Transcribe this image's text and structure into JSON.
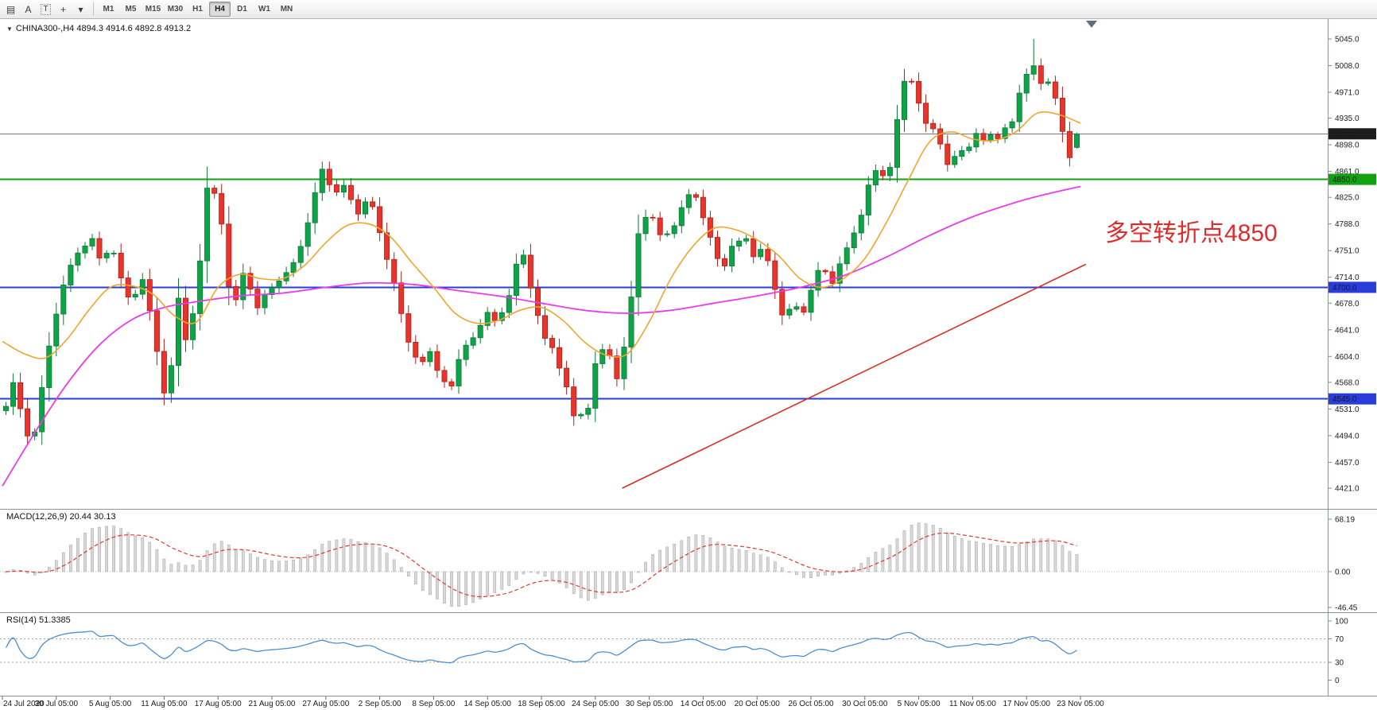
{
  "toolbar": {
    "left_buttons": [
      {
        "name": "windows-tile-icon",
        "glyph": "▤"
      },
      {
        "name": "text-label-icon",
        "glyph": "A"
      },
      {
        "name": "text-box-icon",
        "glyph": "T",
        "boxed": true
      },
      {
        "name": "crosshair-icon",
        "glyph": "+"
      },
      {
        "name": "caret-down-icon",
        "glyph": "▾"
      }
    ],
    "timeframes": [
      {
        "label": "M1"
      },
      {
        "label": "M5"
      },
      {
        "label": "M15"
      },
      {
        "label": "M30"
      },
      {
        "label": "H1"
      },
      {
        "label": "H4",
        "active": true
      },
      {
        "label": "D1"
      },
      {
        "label": "W1"
      },
      {
        "label": "MN"
      }
    ]
  },
  "chart": {
    "collapse_arrow": "▼",
    "symbol_header": "CHINA300-,H4  4894.3 4914.6 4892.8 4913.2",
    "annotation": {
      "text": "多空转折点4850",
      "color": "#e02b2b"
    }
  },
  "macd": {
    "label": "MACD(12,26,9) 20.44 30.13"
  },
  "rsi": {
    "label": "RSI(14) 51.3385"
  },
  "chart_data": {
    "type": "candlestick",
    "symbol": "CHINA300-",
    "timeframe": "H4",
    "ohlc_current": {
      "open": 4894.3,
      "high": 4914.6,
      "low": 4892.8,
      "close": 4913.2
    },
    "num_candles": 150,
    "price_ticks": [
      "5045.0",
      "5008.0",
      "4971.0",
      "4935.0",
      "4898.0",
      "4861.0",
      "4825.0",
      "4788.0",
      "4751.0",
      "4714.0",
      "4678.0",
      "4641.0",
      "4604.0",
      "4568.0",
      "4531.0",
      "4494.0",
      "4457.0",
      "4421.0"
    ],
    "price_range": [
      4421.0,
      5045.0
    ],
    "levels": [
      {
        "price": 4913.2,
        "label": "4913.2",
        "color": "#7a7a7a",
        "width": 1,
        "badge": "#1c1c1c"
      },
      {
        "price": 4850.0,
        "label": "4850.0",
        "color": "#12a112",
        "width": 2,
        "badge": "#12a112"
      },
      {
        "price": 4700.0,
        "label": "4700.0",
        "color": "#2a3cdc",
        "width": 2,
        "badge": "#2a3cdc"
      },
      {
        "price": 4545.0,
        "label": "4545.0",
        "color": "#2a3cdc",
        "width": 2,
        "badge": "#2a3cdc"
      }
    ],
    "time_labels": [
      "24 Jul 2020",
      "30 Jul 05:00",
      "5 Aug 05:00",
      "11 Aug 05:00",
      "17 Aug 05:00",
      "21 Aug 05:00",
      "27 Aug 05:00",
      "2 Sep 05:00",
      "8 Sep 05:00",
      "14 Sep 05:00",
      "18 Sep 05:00",
      "24 Sep 05:00",
      "30 Sep 05:00",
      "14 Oct 05:00",
      "20 Oct 05:00",
      "26 Oct 05:00",
      "30 Oct 05:00",
      "5 Nov 05:00",
      "11 Nov 05:00",
      "17 Nov 05:00",
      "23 Nov 05:00"
    ],
    "price_path": [
      [
        0.0,
        4538
      ],
      [
        0.007,
        4572
      ],
      [
        0.014,
        4524
      ],
      [
        0.024,
        4472
      ],
      [
        0.032,
        4548
      ],
      [
        0.043,
        4642
      ],
      [
        0.056,
        4716
      ],
      [
        0.068,
        4752
      ],
      [
        0.08,
        4768
      ],
      [
        0.089,
        4734
      ],
      [
        0.098,
        4762
      ],
      [
        0.107,
        4716
      ],
      [
        0.117,
        4674
      ],
      [
        0.126,
        4716
      ],
      [
        0.135,
        4665
      ],
      [
        0.146,
        4560
      ],
      [
        0.151,
        4546
      ],
      [
        0.161,
        4688
      ],
      [
        0.169,
        4618
      ],
      [
        0.179,
        4700
      ],
      [
        0.188,
        4842
      ],
      [
        0.199,
        4818
      ],
      [
        0.211,
        4662
      ],
      [
        0.223,
        4724
      ],
      [
        0.234,
        4666
      ],
      [
        0.246,
        4700
      ],
      [
        0.259,
        4716
      ],
      [
        0.271,
        4740
      ],
      [
        0.283,
        4798
      ],
      [
        0.295,
        4866
      ],
      [
        0.306,
        4830
      ],
      [
        0.317,
        4840
      ],
      [
        0.328,
        4798
      ],
      [
        0.339,
        4830
      ],
      [
        0.351,
        4768
      ],
      [
        0.363,
        4700
      ],
      [
        0.376,
        4625
      ],
      [
        0.386,
        4590
      ],
      [
        0.396,
        4614
      ],
      [
        0.406,
        4568
      ],
      [
        0.416,
        4562
      ],
      [
        0.426,
        4614
      ],
      [
        0.437,
        4628
      ],
      [
        0.448,
        4668
      ],
      [
        0.459,
        4648
      ],
      [
        0.47,
        4686
      ],
      [
        0.481,
        4760
      ],
      [
        0.491,
        4688
      ],
      [
        0.501,
        4634
      ],
      [
        0.511,
        4612
      ],
      [
        0.521,
        4576
      ],
      [
        0.531,
        4518
      ],
      [
        0.543,
        4526
      ],
      [
        0.551,
        4598
      ],
      [
        0.561,
        4618
      ],
      [
        0.571,
        4568
      ],
      [
        0.581,
        4648
      ],
      [
        0.591,
        4778
      ],
      [
        0.601,
        4808
      ],
      [
        0.611,
        4774
      ],
      [
        0.621,
        4780
      ],
      [
        0.631,
        4808
      ],
      [
        0.641,
        4836
      ],
      [
        0.651,
        4800
      ],
      [
        0.66,
        4758
      ],
      [
        0.669,
        4720
      ],
      [
        0.679,
        4758
      ],
      [
        0.689,
        4772
      ],
      [
        0.699,
        4738
      ],
      [
        0.708,
        4758
      ],
      [
        0.717,
        4700
      ],
      [
        0.727,
        4654
      ],
      [
        0.736,
        4678
      ],
      [
        0.744,
        4660
      ],
      [
        0.754,
        4710
      ],
      [
        0.762,
        4736
      ],
      [
        0.771,
        4700
      ],
      [
        0.781,
        4740
      ],
      [
        0.79,
        4768
      ],
      [
        0.799,
        4798
      ],
      [
        0.809,
        4866
      ],
      [
        0.818,
        4850
      ],
      [
        0.827,
        4870
      ],
      [
        0.836,
        4982
      ],
      [
        0.844,
        4992
      ],
      [
        0.851,
        4958
      ],
      [
        0.859,
        4930
      ],
      [
        0.867,
        4918
      ],
      [
        0.874,
        4894
      ],
      [
        0.881,
        4862
      ],
      [
        0.889,
        4898
      ],
      [
        0.897,
        4884
      ],
      [
        0.904,
        4918
      ],
      [
        0.911,
        4904
      ],
      [
        0.919,
        4916
      ],
      [
        0.927,
        4908
      ],
      [
        0.934,
        4928
      ],
      [
        0.941,
        4934
      ],
      [
        0.949,
        4984
      ],
      [
        0.956,
        4999
      ],
      [
        0.962,
        5018
      ],
      [
        0.968,
        4974
      ],
      [
        0.974,
        4988
      ],
      [
        0.981,
        4958
      ],
      [
        0.988,
        4904
      ],
      [
        0.994,
        4878
      ],
      [
        1.0,
        4913.2
      ]
    ],
    "ma_fast": [
      [
        0.0,
        4625
      ],
      [
        0.02,
        4608
      ],
      [
        0.04,
        4602
      ],
      [
        0.06,
        4628
      ],
      [
        0.08,
        4668
      ],
      [
        0.1,
        4700
      ],
      [
        0.12,
        4702
      ],
      [
        0.14,
        4690
      ],
      [
        0.16,
        4660
      ],
      [
        0.18,
        4652
      ],
      [
        0.2,
        4700
      ],
      [
        0.22,
        4718
      ],
      [
        0.24,
        4712
      ],
      [
        0.26,
        4712
      ],
      [
        0.28,
        4730
      ],
      [
        0.3,
        4762
      ],
      [
        0.32,
        4786
      ],
      [
        0.34,
        4788
      ],
      [
        0.36,
        4770
      ],
      [
        0.38,
        4734
      ],
      [
        0.4,
        4700
      ],
      [
        0.42,
        4664
      ],
      [
        0.44,
        4650
      ],
      [
        0.46,
        4654
      ],
      [
        0.48,
        4668
      ],
      [
        0.5,
        4672
      ],
      [
        0.52,
        4654
      ],
      [
        0.54,
        4624
      ],
      [
        0.56,
        4606
      ],
      [
        0.58,
        4608
      ],
      [
        0.6,
        4652
      ],
      [
        0.62,
        4712
      ],
      [
        0.64,
        4756
      ],
      [
        0.66,
        4782
      ],
      [
        0.68,
        4780
      ],
      [
        0.7,
        4766
      ],
      [
        0.72,
        4744
      ],
      [
        0.74,
        4712
      ],
      [
        0.76,
        4700
      ],
      [
        0.78,
        4712
      ],
      [
        0.8,
        4740
      ],
      [
        0.82,
        4790
      ],
      [
        0.84,
        4848
      ],
      [
        0.86,
        4902
      ],
      [
        0.88,
        4916
      ],
      [
        0.9,
        4906
      ],
      [
        0.92,
        4904
      ],
      [
        0.94,
        4916
      ],
      [
        0.96,
        4942
      ],
      [
        0.98,
        4940
      ],
      [
        1.0,
        4928
      ]
    ],
    "ma_slow": [
      [
        0.0,
        4424
      ],
      [
        0.03,
        4498
      ],
      [
        0.06,
        4566
      ],
      [
        0.09,
        4620
      ],
      [
        0.12,
        4655
      ],
      [
        0.15,
        4672
      ],
      [
        0.18,
        4680
      ],
      [
        0.22,
        4688
      ],
      [
        0.26,
        4692
      ],
      [
        0.3,
        4700
      ],
      [
        0.34,
        4706
      ],
      [
        0.38,
        4704
      ],
      [
        0.42,
        4696
      ],
      [
        0.46,
        4688
      ],
      [
        0.5,
        4678
      ],
      [
        0.54,
        4668
      ],
      [
        0.58,
        4664
      ],
      [
        0.62,
        4668
      ],
      [
        0.66,
        4678
      ],
      [
        0.7,
        4688
      ],
      [
        0.74,
        4700
      ],
      [
        0.78,
        4716
      ],
      [
        0.82,
        4742
      ],
      [
        0.86,
        4772
      ],
      [
        0.9,
        4798
      ],
      [
        0.94,
        4818
      ],
      [
        0.97,
        4830
      ],
      [
        1.0,
        4840
      ]
    ],
    "trendline": [
      [
        0.575,
        4421
      ],
      [
        1.005,
        4732
      ]
    ],
    "indicators": {
      "macd": {
        "fast": 12,
        "slow": 26,
        "signal": 9,
        "current_macd": 20.44,
        "current_signal": 30.13,
        "ticks": [
          "68.19",
          "0.00",
          "-46.45"
        ]
      },
      "rsi": {
        "period": 14,
        "current": 51.3385,
        "ticks": [
          "100",
          "70",
          "30",
          "0"
        ],
        "levels": [
          70,
          30
        ]
      }
    },
    "colors": {
      "up": "#0fa348",
      "up_edge": "#0a7a34",
      "down": "#e8352b",
      "down_edge": "#b02018",
      "ma_fast": "#f2a52e",
      "ma_slow": "#ea3bea",
      "trendline": "#d93025",
      "macd_hist_fill": "#d8d8d8",
      "macd_hist_edge": "#a5a5a5",
      "macd_signal": "#e23b2e",
      "rsi_line": "#4a8fd4"
    }
  }
}
